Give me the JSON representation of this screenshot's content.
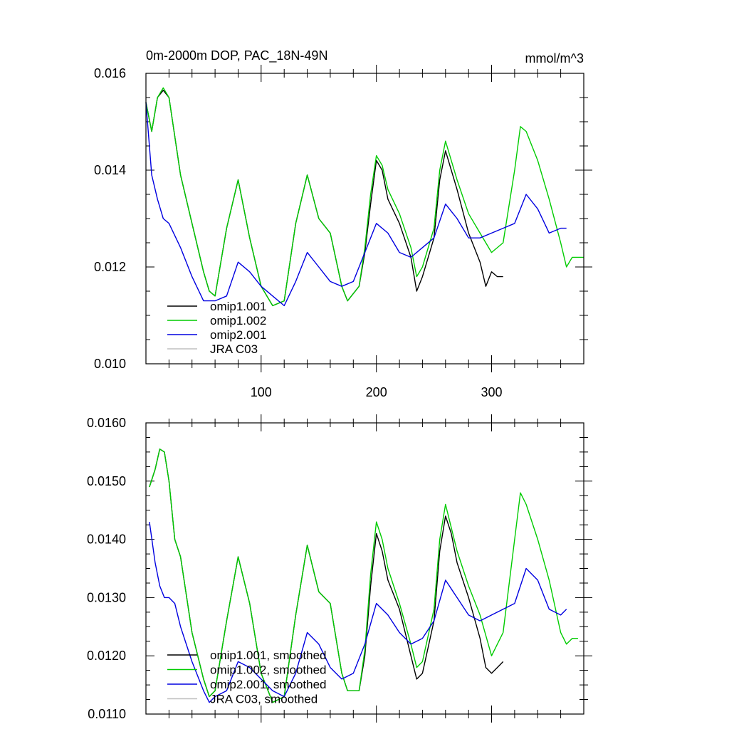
{
  "chart_data": [
    {
      "type": "line",
      "title_left": "0m-2000m DOP, PAC_18N-49N",
      "title_right": "mmol/m^3",
      "xlim": [
        0,
        380
      ],
      "ylim": [
        0.01,
        0.016
      ],
      "x_ticks": [
        100,
        200,
        300
      ],
      "x_tick_labels": [
        "100",
        "200",
        "300"
      ],
      "y_ticks": [
        0.01,
        0.012,
        0.014,
        0.016
      ],
      "y_tick_labels": [
        "0.010",
        "0.012",
        "0.014",
        "0.016"
      ],
      "legend": [
        "omip1.001",
        "omip1.002",
        "omip2.001",
        "JRA C03"
      ],
      "series": [
        {
          "name": "omip1.001",
          "color": "#000000",
          "x": [
            0,
            5,
            10,
            15,
            20,
            30,
            40,
            50,
            55,
            60,
            70,
            80,
            90,
            100,
            110,
            120,
            130,
            140,
            150,
            160,
            170,
            175,
            185,
            190,
            195,
            200,
            205,
            210,
            220,
            230,
            235,
            240,
            250,
            255,
            260,
            265,
            270,
            280,
            290,
            295,
            300,
            305,
            310
          ],
          "y": [
            0.0154,
            0.0148,
            0.0155,
            0.01565,
            0.0155,
            0.0139,
            0.0129,
            0.0119,
            0.0115,
            0.0114,
            0.0128,
            0.0138,
            0.0126,
            0.0116,
            0.0112,
            0.0113,
            0.0129,
            0.0139,
            0.013,
            0.0127,
            0.0116,
            0.0113,
            0.0116,
            0.0123,
            0.0133,
            0.0142,
            0.014,
            0.0134,
            0.0129,
            0.0122,
            0.0115,
            0.0118,
            0.0126,
            0.0138,
            0.0144,
            0.014,
            0.0136,
            0.0127,
            0.0121,
            0.0116,
            0.0119,
            0.0118,
            0.0118
          ]
        },
        {
          "name": "omip1.002",
          "color": "#00cc00",
          "x": [
            0,
            5,
            10,
            15,
            20,
            30,
            40,
            50,
            55,
            60,
            70,
            80,
            90,
            100,
            110,
            120,
            130,
            140,
            150,
            160,
            170,
            175,
            185,
            190,
            195,
            200,
            205,
            210,
            220,
            230,
            235,
            240,
            250,
            255,
            260,
            265,
            270,
            280,
            290,
            300,
            310,
            320,
            325,
            330,
            340,
            350,
            360,
            365,
            370,
            375,
            380
          ],
          "y": [
            0.0154,
            0.0148,
            0.0155,
            0.0157,
            0.0155,
            0.0139,
            0.0129,
            0.0119,
            0.0115,
            0.0114,
            0.0128,
            0.0138,
            0.0126,
            0.0116,
            0.0112,
            0.0113,
            0.0129,
            0.0139,
            0.013,
            0.0127,
            0.0116,
            0.0113,
            0.0116,
            0.0124,
            0.0135,
            0.0143,
            0.0141,
            0.0136,
            0.0131,
            0.0124,
            0.0118,
            0.012,
            0.0128,
            0.014,
            0.0146,
            0.0142,
            0.0138,
            0.0131,
            0.0127,
            0.0123,
            0.0125,
            0.014,
            0.0149,
            0.0148,
            0.0142,
            0.0134,
            0.0125,
            0.012,
            0.0122,
            0.0122,
            0.0122
          ]
        },
        {
          "name": "omip2.001",
          "color": "#0000e0",
          "x": [
            0,
            5,
            10,
            15,
            20,
            30,
            40,
            50,
            60,
            70,
            80,
            90,
            100,
            110,
            120,
            130,
            140,
            150,
            160,
            170,
            180,
            190,
            200,
            210,
            220,
            230,
            240,
            250,
            260,
            270,
            280,
            290,
            300,
            310,
            320,
            330,
            340,
            350,
            360,
            365
          ],
          "y": [
            0.0154,
            0.0139,
            0.0134,
            0.013,
            0.0129,
            0.0124,
            0.0118,
            0.0113,
            0.0113,
            0.0114,
            0.0121,
            0.0119,
            0.0116,
            0.0114,
            0.0112,
            0.0117,
            0.0123,
            0.012,
            0.0117,
            0.0116,
            0.0117,
            0.0123,
            0.0129,
            0.0127,
            0.0123,
            0.0122,
            0.0124,
            0.0126,
            0.0133,
            0.013,
            0.0126,
            0.0126,
            0.0127,
            0.0128,
            0.0129,
            0.0135,
            0.0132,
            0.0127,
            0.0128,
            0.0128
          ]
        }
      ]
    },
    {
      "type": "line",
      "xlim": [
        0,
        380
      ],
      "ylim": [
        0.011,
        0.016
      ],
      "x_ticks": [
        100,
        200,
        300
      ],
      "x_tick_labels": [],
      "y_ticks": [
        0.011,
        0.012,
        0.013,
        0.014,
        0.015,
        0.016
      ],
      "y_tick_labels": [
        "0.0110",
        "0.0120",
        "0.0130",
        "0.0140",
        "0.0150",
        "0.0160"
      ],
      "legend": [
        "omip1.001, smoothed",
        "omip1.002, smoothed",
        "omip2.001, smoothed",
        "JRA C03, smoothed"
      ],
      "series": [
        {
          "name": "omip1.001, smoothed",
          "color": "#000000",
          "x": [
            3,
            8,
            12,
            16,
            20,
            25,
            30,
            40,
            50,
            55,
            60,
            70,
            80,
            90,
            100,
            110,
            120,
            130,
            140,
            150,
            160,
            170,
            175,
            185,
            190,
            195,
            200,
            205,
            210,
            220,
            230,
            235,
            240,
            250,
            255,
            260,
            265,
            270,
            280,
            290,
            295,
            300,
            305,
            310
          ],
          "y": [
            0.0149,
            0.0152,
            0.01555,
            0.0155,
            0.015,
            0.014,
            0.0137,
            0.0124,
            0.0116,
            0.0113,
            0.0114,
            0.0126,
            0.0137,
            0.0129,
            0.0117,
            0.0112,
            0.0113,
            0.0127,
            0.0139,
            0.0131,
            0.0129,
            0.0117,
            0.0114,
            0.0114,
            0.012,
            0.0132,
            0.0141,
            0.0138,
            0.0133,
            0.0128,
            0.012,
            0.0116,
            0.0117,
            0.0126,
            0.0138,
            0.0144,
            0.0141,
            0.0136,
            0.013,
            0.0123,
            0.0118,
            0.0117,
            0.0118,
            0.0119
          ]
        },
        {
          "name": "omip1.002, smoothed",
          "color": "#00cc00",
          "x": [
            3,
            8,
            12,
            16,
            20,
            25,
            30,
            40,
            50,
            55,
            60,
            70,
            80,
            90,
            100,
            110,
            120,
            130,
            140,
            150,
            160,
            170,
            175,
            185,
            190,
            195,
            200,
            205,
            210,
            220,
            230,
            235,
            240,
            250,
            255,
            260,
            265,
            270,
            280,
            290,
            300,
            310,
            320,
            325,
            330,
            340,
            350,
            360,
            365,
            370,
            375
          ],
          "y": [
            0.0149,
            0.0152,
            0.01555,
            0.0155,
            0.015,
            0.014,
            0.0137,
            0.0124,
            0.0116,
            0.0113,
            0.0114,
            0.0126,
            0.0137,
            0.0129,
            0.0117,
            0.0112,
            0.0113,
            0.0127,
            0.0139,
            0.0131,
            0.0129,
            0.0117,
            0.0114,
            0.0114,
            0.0121,
            0.0134,
            0.0143,
            0.014,
            0.0135,
            0.0129,
            0.0122,
            0.0118,
            0.0119,
            0.0128,
            0.014,
            0.0146,
            0.0142,
            0.0138,
            0.0132,
            0.0127,
            0.012,
            0.0124,
            0.014,
            0.0148,
            0.0146,
            0.014,
            0.0133,
            0.0124,
            0.0122,
            0.0123,
            0.0123
          ]
        },
        {
          "name": "omip2.001, smoothed",
          "color": "#0000e0",
          "x": [
            3,
            8,
            12,
            16,
            20,
            25,
            30,
            40,
            50,
            55,
            60,
            70,
            80,
            90,
            100,
            110,
            120,
            130,
            140,
            150,
            160,
            170,
            180,
            190,
            200,
            210,
            220,
            230,
            240,
            250,
            260,
            270,
            280,
            290,
            300,
            310,
            320,
            330,
            340,
            350,
            360,
            365
          ],
          "y": [
            0.0143,
            0.0136,
            0.0132,
            0.013,
            0.013,
            0.0129,
            0.0125,
            0.0119,
            0.0114,
            0.0112,
            0.0113,
            0.0114,
            0.0119,
            0.0118,
            0.0116,
            0.0114,
            0.0113,
            0.0117,
            0.0124,
            0.0122,
            0.0118,
            0.0116,
            0.0117,
            0.0122,
            0.0129,
            0.0127,
            0.0124,
            0.0122,
            0.0123,
            0.0126,
            0.0133,
            0.013,
            0.0127,
            0.0126,
            0.0127,
            0.0128,
            0.0129,
            0.0135,
            0.0133,
            0.0128,
            0.0127,
            0.0128
          ]
        }
      ]
    }
  ]
}
